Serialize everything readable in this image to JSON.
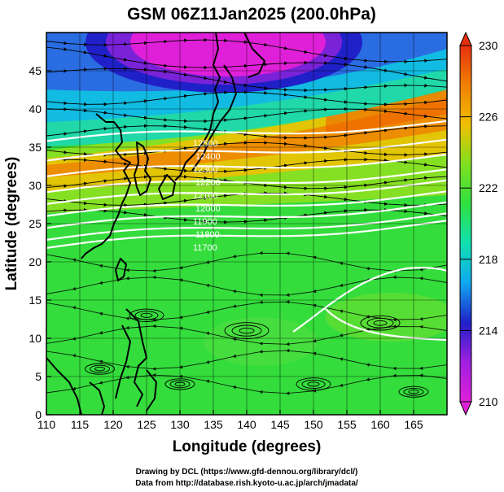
{
  "title": "GSM 06Z11Jan2025 (200.0hPa)",
  "x_axis": {
    "label": "Longitude (degrees)",
    "range": [
      110,
      170
    ],
    "ticks": [
      110,
      115,
      120,
      125,
      130,
      135,
      140,
      145,
      150,
      155,
      160,
      165
    ]
  },
  "y_axis": {
    "label": "Latitude  (degrees)",
    "range": [
      0,
      50
    ],
    "ticks": [
      0,
      5,
      10,
      15,
      20,
      25,
      30,
      35,
      40,
      45
    ]
  },
  "colorbar": {
    "min": 210,
    "max": 230,
    "ticks": [
      "230",
      "226",
      "222",
      "218",
      "214",
      "210"
    ],
    "stops": [
      "#e020d8",
      "#a020e0",
      "#2020c8",
      "#10a8f0",
      "#10e0b0",
      "#30e040",
      "#80e020",
      "#f0c000",
      "#f08000",
      "#e83010"
    ]
  },
  "contour_labels": [
    "12500",
    "12400",
    "12300",
    "12200",
    "12100",
    "12000",
    "11900",
    "11800",
    "11700"
  ],
  "credits": [
    "Drawing by DCL (https://www.gfd-dennou.org/library/dcl/)",
    "Data from http://database.rish.kyoto-u.ac.jp/arch/jmadata/"
  ],
  "colors": {
    "background": "#ffffff",
    "low_temperature": "#e020d8",
    "high_temperature": "#e83010",
    "mid_field": "#30e040",
    "contour": "#ffffff",
    "streamline": "#000000",
    "coastline": "#000000"
  }
}
